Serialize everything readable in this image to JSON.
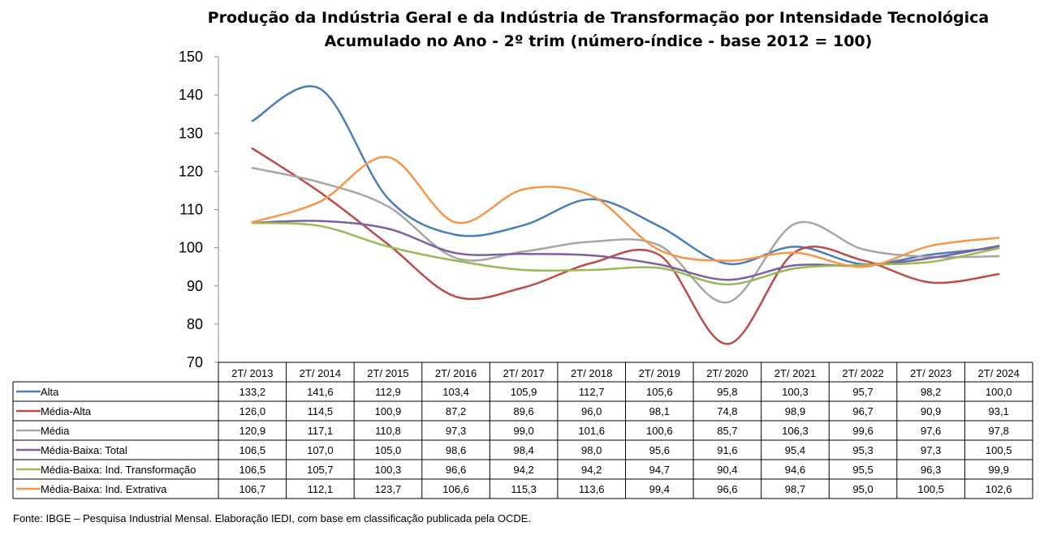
{
  "chart_data": {
    "type": "line",
    "title": "Produção da Indústria Geral e da Indústria de Transformação por Intensidade Tecnológica",
    "subtitle": "Acumulado no Ano - 2º trim (número-índice - base 2012 = 100)",
    "categories": [
      "2T/ 2013",
      "2T/ 2014",
      "2T/ 2015",
      "2T/ 2016",
      "2T/ 2017",
      "2T/ 2018",
      "2T/ 2019",
      "2T/ 2020",
      "2T/ 2021",
      "2T/ 2022",
      "2T/ 2023",
      "2T/ 2024"
    ],
    "ylim": [
      70,
      150
    ],
    "yticks": [
      "70",
      "80",
      "90",
      "100",
      "110",
      "120",
      "130",
      "140",
      "150"
    ],
    "grid": false,
    "legend": "data-table",
    "series": [
      {
        "name": "Alta",
        "color": "#4a7ebb",
        "values": [
          133.2,
          141.6,
          112.9,
          103.4,
          105.9,
          112.7,
          105.6,
          95.8,
          100.3,
          95.7,
          98.2,
          100.0
        ],
        "labels": [
          "133,2",
          "141,6",
          "112,9",
          "103,4",
          "105,9",
          "112,7",
          "105,6",
          "95,8",
          "100,3",
          "95,7",
          "98,2",
          "100,0"
        ]
      },
      {
        "name": "Média-Alta",
        "color": "#be4b48",
        "values": [
          126.0,
          114.5,
          100.9,
          87.2,
          89.6,
          96.0,
          98.1,
          74.8,
          98.9,
          96.7,
          90.9,
          93.1
        ],
        "labels": [
          "126,0",
          "114,5",
          "100,9",
          "87,2",
          "89,6",
          "96,0",
          "98,1",
          "74,8",
          "98,9",
          "96,7",
          "90,9",
          "93,1"
        ]
      },
      {
        "name": "Média",
        "color": "#a6a6a6",
        "values": [
          120.9,
          117.1,
          110.8,
          97.3,
          99.0,
          101.6,
          100.6,
          85.7,
          106.3,
          99.6,
          97.6,
          97.8
        ],
        "labels": [
          "120,9",
          "117,1",
          "110,8",
          "97,3",
          "99,0",
          "101,6",
          "100,6",
          "85,7",
          "106,3",
          "99,6",
          "97,6",
          "97,8"
        ]
      },
      {
        "name": "Média-Baixa: Total",
        "color": "#7d60a0",
        "values": [
          106.5,
          107.0,
          105.0,
          98.6,
          98.4,
          98.0,
          95.6,
          91.6,
          95.4,
          95.3,
          97.3,
          100.5
        ],
        "labels": [
          "106,5",
          "107,0",
          "105,0",
          "98,6",
          "98,4",
          "98,0",
          "95,6",
          "91,6",
          "95,4",
          "95,3",
          "97,3",
          "100,5"
        ]
      },
      {
        "name": "Média-Baixa: Ind. Transformação",
        "color": "#98b954",
        "values": [
          106.5,
          105.7,
          100.3,
          96.6,
          94.2,
          94.2,
          94.7,
          90.4,
          94.6,
          95.5,
          96.3,
          99.9
        ],
        "labels": [
          "106,5",
          "105,7",
          "100,3",
          "96,6",
          "94,2",
          "94,2",
          "94,7",
          "90,4",
          "94,6",
          "95,5",
          "96,3",
          "99,9"
        ]
      },
      {
        "name": "Média-Baixa: Ind. Extrativa",
        "color": "#f79646",
        "values": [
          106.7,
          112.1,
          123.7,
          106.6,
          115.3,
          113.6,
          99.4,
          96.6,
          98.7,
          95.0,
          100.5,
          102.6
        ],
        "labels": [
          "106,7",
          "112,1",
          "123,7",
          "106,6",
          "115,3",
          "113,6",
          "99,4",
          "96,6",
          "98,7",
          "95,0",
          "100,5",
          "102,6"
        ]
      }
    ]
  },
  "footer": {
    "source": "Fonte: IBGE – Pesquisa Industrial Mensal. Elaboração IEDI, com base em classificação publicada pela OCDE."
  }
}
